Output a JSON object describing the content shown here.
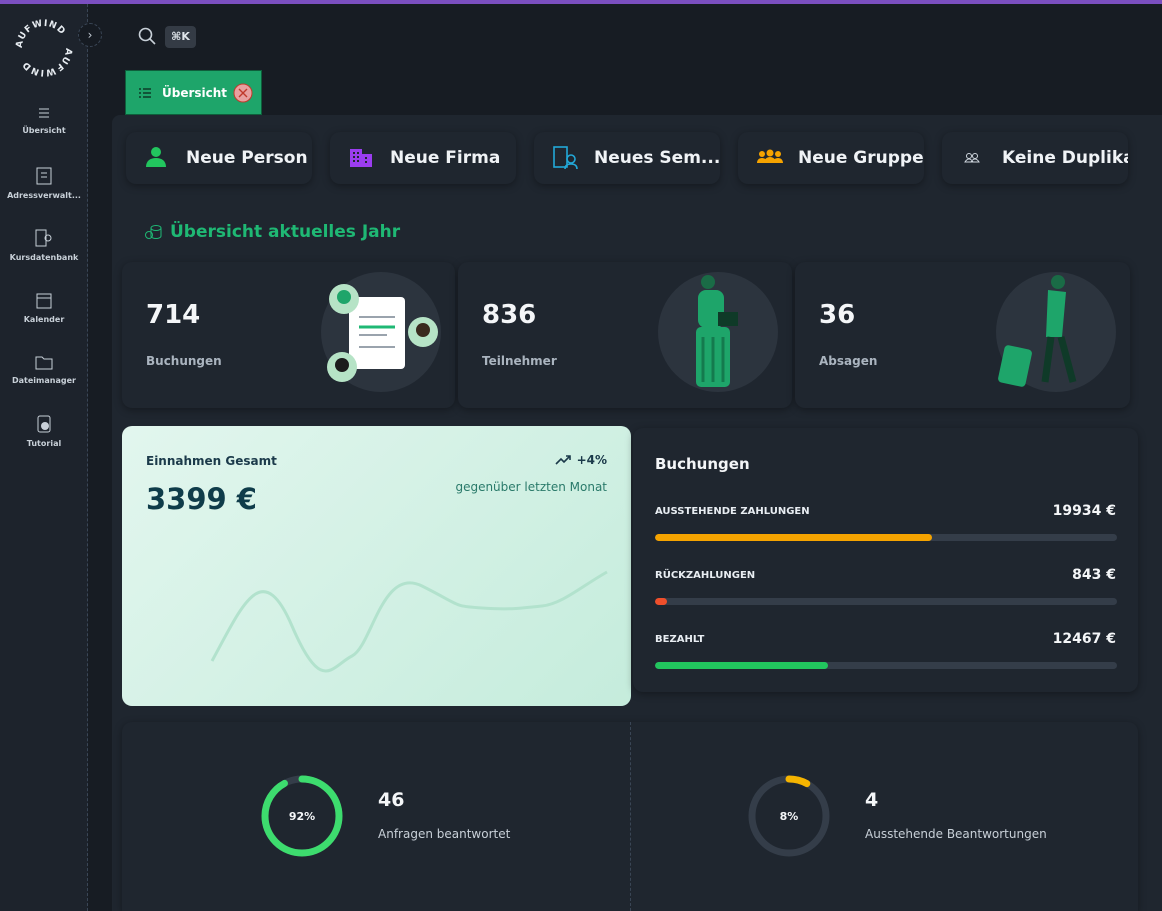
{
  "logo": "AUFWIND",
  "sidebar": [
    {
      "label": "Übersicht"
    },
    {
      "label": "Adressverwalt..."
    },
    {
      "label": "Kursdatenbank"
    },
    {
      "label": "Kalender"
    },
    {
      "label": "Dateimanager"
    },
    {
      "label": "Tutorial"
    }
  ],
  "search": {
    "shortcut": "⌘K"
  },
  "tab": {
    "label": "Übersicht"
  },
  "quick_actions": [
    {
      "label": "Neue Person",
      "color": "#22c55e"
    },
    {
      "label": "Neue Firma",
      "color": "#9b3df0"
    },
    {
      "label": "Neues Sem...",
      "color": "#22a8d8"
    },
    {
      "label": "Neue Gruppe",
      "color": "#f5a300"
    },
    {
      "label": "Keine Duplikat...",
      "color": "#cfd6de"
    }
  ],
  "section_title": "Übersicht aktuelles Jahr",
  "stats": [
    {
      "value": "714",
      "label": "Buchungen"
    },
    {
      "value": "836",
      "label": "Teilnehmer"
    },
    {
      "value": "36",
      "label": "Absagen"
    }
  ],
  "revenue": {
    "title": "Einnahmen Gesamt",
    "amount": "3399 €",
    "trend": "+4%",
    "trend_note": "gegenüber letzten Monat"
  },
  "bookings": {
    "title": "Buchungen",
    "items": [
      {
        "label": "AUSSTEHENDE ZAHLUNGEN",
        "amount": 19934,
        "amount_label": "19934 €",
        "color": "#f5a300"
      },
      {
        "label": "RÜCKZAHLUNGEN",
        "amount": 843,
        "amount_label": "843 €",
        "color": "#ef4f2b"
      },
      {
        "label": "BEZAHLT",
        "amount": 12467,
        "amount_label": "12467 €",
        "color": "#22c55e"
      }
    ]
  },
  "rings": [
    {
      "value": 92,
      "value_label": "92%",
      "count": "46",
      "label": "Anfragen beantwortet",
      "color": "#3ddc6e"
    },
    {
      "value": 8,
      "value_label": "8%",
      "count": "4",
      "label": "Ausstehende Beantwortungen",
      "color": "#f5b400"
    }
  ]
}
